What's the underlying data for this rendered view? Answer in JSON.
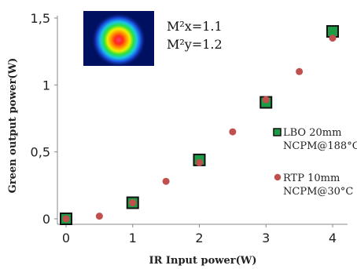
{
  "chart_data": {
    "type": "scatter",
    "xlabel": "IR Input power(W)",
    "ylabel": "Green output power(W)",
    "xlim": [
      -0.1,
      4.3
    ],
    "ylim": [
      0,
      1.5
    ],
    "x_ticks": [
      "0",
      "1",
      "2",
      "3",
      "4"
    ],
    "y_ticks": [
      "0",
      "0,5",
      "1",
      "1,5"
    ],
    "grid": false,
    "legend_position": "right",
    "series": [
      {
        "name": "LBO 20mm\nNCPM@188°C",
        "name_lines": [
          "LBO 20mm",
          "NCPM@188°C"
        ],
        "marker": "square",
        "color": "#1e9b45",
        "x": [
          0,
          1,
          2,
          3,
          4
        ],
        "y": [
          0.0,
          0.12,
          0.44,
          0.87,
          1.4
        ]
      },
      {
        "name": "RTP 10mm\nNCPM@30°C",
        "name_lines": [
          "RTP 10mm",
          "NCPM@30°C"
        ],
        "marker": "circle",
        "color": "#c0504d",
        "x": [
          0,
          0.5,
          1,
          1.5,
          2,
          2.5,
          3,
          3.5,
          4
        ],
        "y": [
          0.0,
          0.02,
          0.12,
          0.28,
          0.42,
          0.65,
          0.89,
          1.1,
          1.35
        ]
      }
    ],
    "annotations": [
      "M²x=1.1",
      "M²y=1.2"
    ],
    "inset": "beam-profile-image"
  }
}
